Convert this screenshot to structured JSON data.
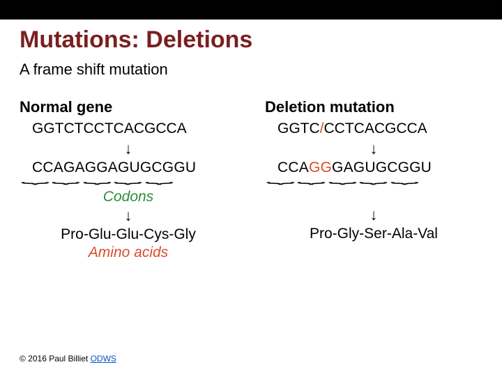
{
  "title": "Mutations: Deletions",
  "subtitle": "A frame shift mutation",
  "colors": {
    "title": "#7a1f1f",
    "codons_label": "#2e8b3d",
    "amino_label": "#d94a2b",
    "highlight": "#d94a2b",
    "link": "#0b4fc7",
    "background": "#ffffff",
    "black_bar": "#000000"
  },
  "left": {
    "heading": "Normal gene",
    "dna": "GGTCTCCTCACGCCA",
    "arrow": "↓",
    "rna_codons": [
      "CCA",
      "GAG",
      "GAG",
      "UGC",
      "GGU"
    ],
    "rna_colors": [
      "#000000",
      "#000000",
      "#000000",
      "#000000",
      "#000000"
    ],
    "codons_label": "Codons",
    "arrow2": "↓",
    "amino": "Pro-Glu-Glu-Cys-Gly",
    "amino_label": "Amino acids"
  },
  "right": {
    "heading": "Deletion mutation",
    "dna_pre": "GGTC",
    "dna_slash": "/",
    "dna_post": "CCTCACGCCA",
    "arrow": "↓",
    "rna_codons": [
      "CCA",
      "GGG",
      "AGU",
      "GCG",
      "GU"
    ],
    "rna_colors": [
      "#000000",
      "#d94a2b",
      "#000000",
      "#000000",
      "#000000"
    ],
    "rna_mixed_index": 1,
    "rna_mixed_prefix": "GG",
    "rna_mixed_suffix": "G",
    "arrow2": "↓",
    "amino": "Pro-Gly-Ser-Ala-Val"
  },
  "footer": {
    "copyright": "© 2016 Paul Billiet ",
    "link_text": "ODWS"
  }
}
